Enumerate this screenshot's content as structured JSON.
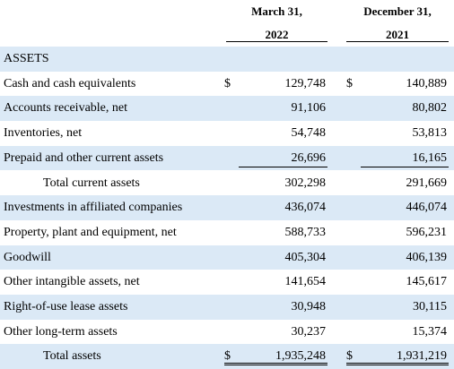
{
  "header": {
    "columns": [
      {
        "line1": "March 31,",
        "line2": "2022"
      },
      {
        "line1": "December 31,",
        "line2": "2021"
      }
    ]
  },
  "table": {
    "section": "ASSETS",
    "rows": [
      {
        "label": "Cash and cash equivalents",
        "currency": "$",
        "values": [
          "129,748",
          "140,889"
        ]
      },
      {
        "label": "Accounts receivable, net",
        "values": [
          "91,106",
          "80,802"
        ]
      },
      {
        "label": "Inventories, net",
        "values": [
          "54,748",
          "53,813"
        ]
      },
      {
        "label": "Prepaid and other current assets",
        "values": [
          "26,696",
          "16,165"
        ]
      },
      {
        "label": "Total current assets",
        "values": [
          "302,298",
          "291,669"
        ]
      },
      {
        "label": "Investments in affiliated companies",
        "values": [
          "436,074",
          "446,074"
        ]
      },
      {
        "label": "Property, plant and equipment, net",
        "values": [
          "588,733",
          "596,231"
        ]
      },
      {
        "label": "Goodwill",
        "values": [
          "405,304",
          "406,139"
        ]
      },
      {
        "label": "Other intangible assets, net",
        "values": [
          "141,654",
          "145,617"
        ]
      },
      {
        "label": "Right-of-use lease assets",
        "values": [
          "30,948",
          "30,115"
        ]
      },
      {
        "label": "Other long-term assets",
        "values": [
          "30,237",
          "15,374"
        ]
      },
      {
        "label": "Total assets",
        "currency": "$",
        "values": [
          "1,935,248",
          "1,931,219"
        ]
      }
    ]
  }
}
